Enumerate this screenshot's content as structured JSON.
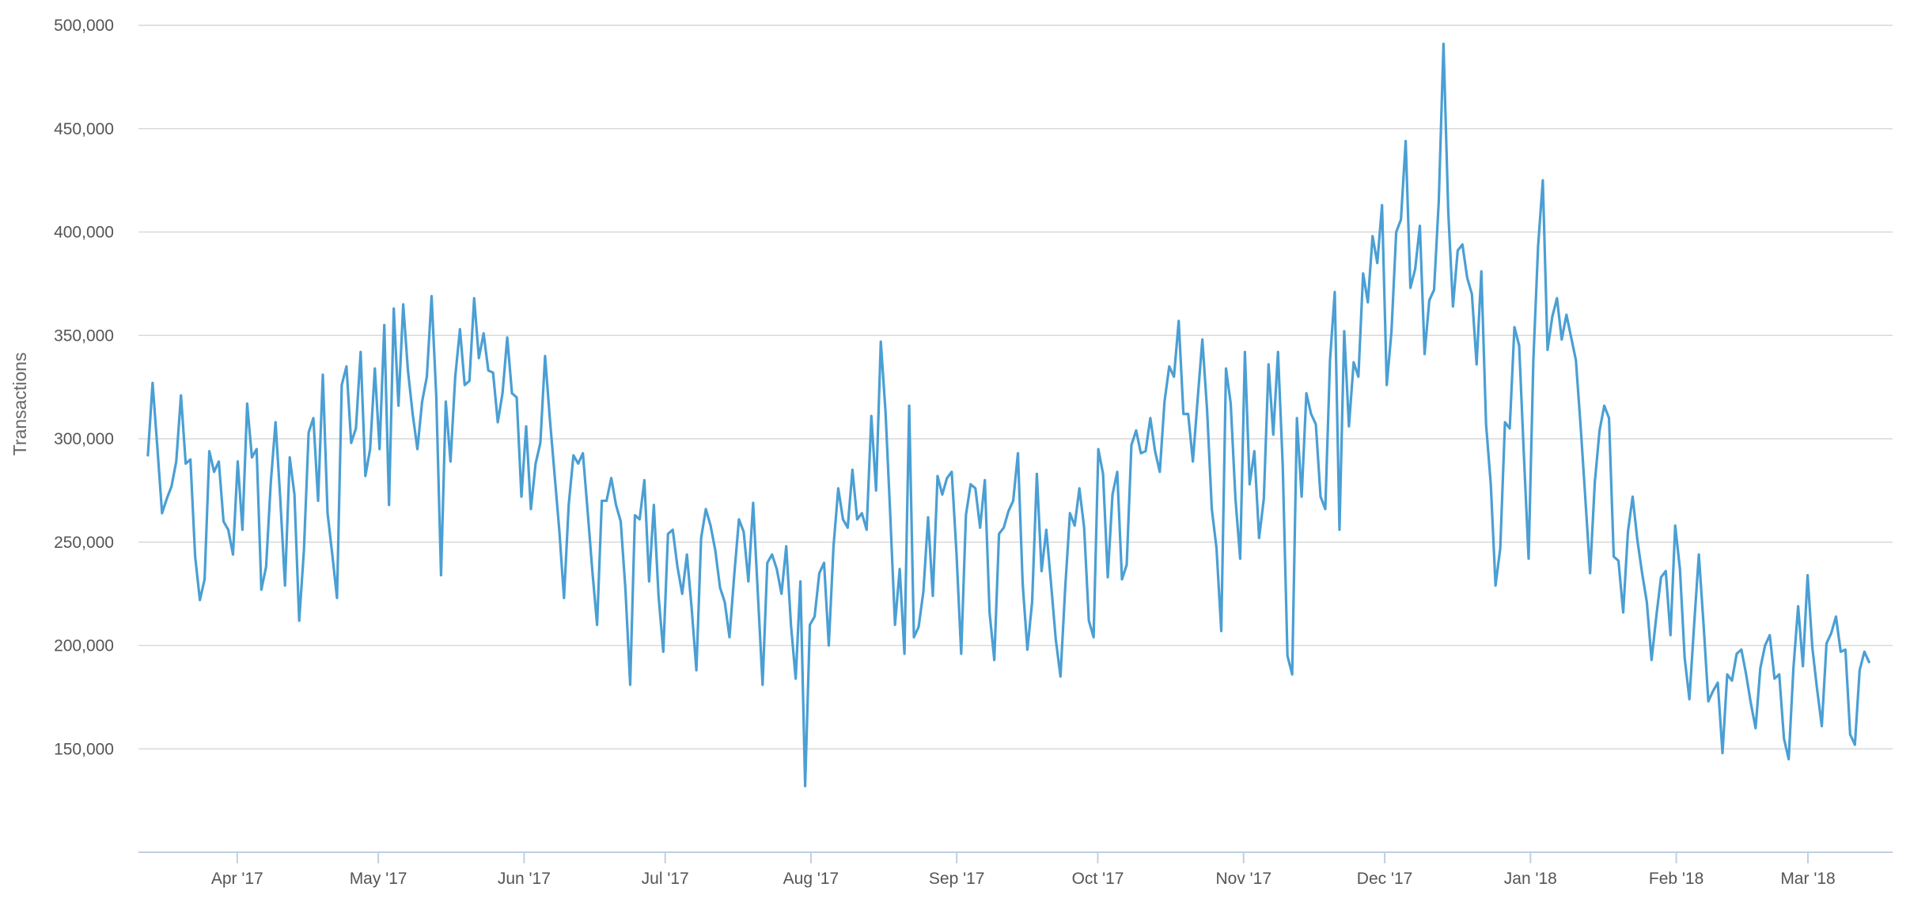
{
  "chart_data": {
    "type": "line",
    "title": "",
    "xlabel": "",
    "ylabel": "Transactions",
    "x_ticks": [
      "Apr '17",
      "May '17",
      "Jun '17",
      "Jul '17",
      "Aug '17",
      "Sep '17",
      "Oct '17",
      "Nov '17",
      "Dec '17",
      "Jan '18",
      "Feb '18",
      "Mar '18"
    ],
    "x_range": [
      "2017-03-11",
      "2018-03-19"
    ],
    "y_ticks": [
      150000,
      200000,
      250000,
      300000,
      350000,
      400000,
      450000,
      500000
    ],
    "y_tick_labels": [
      "150,000",
      "200,000",
      "250,000",
      "300,000",
      "350,000",
      "400,000",
      "450,000",
      "500,000"
    ],
    "ylim": [
      100000,
      500000
    ],
    "grid": true,
    "line_color": "#4a9fd4",
    "series": [
      {
        "start_date": "2017-03-13",
        "end_date": "2018-03-14",
        "values": [
          292000,
          327000,
          296000,
          264000,
          271000,
          277000,
          289000,
          321000,
          288000,
          290000,
          243000,
          222000,
          232000,
          294000,
          284000,
          289000,
          260000,
          256000,
          244000,
          289000,
          256000,
          317000,
          291000,
          295000,
          227000,
          238000,
          279000,
          308000,
          271000,
          229000,
          291000,
          273000,
          212000,
          246000,
          303000,
          310000,
          270000,
          331000,
          264000,
          244000,
          223000,
          326000,
          335000,
          298000,
          305000,
          342000,
          282000,
          295000,
          334000,
          295000,
          355000,
          268000,
          363000,
          316000,
          365000,
          333000,
          312000,
          295000,
          318000,
          330000,
          369000,
          320000,
          234000,
          318000,
          289000,
          330000,
          353000,
          326000,
          328000,
          368000,
          339000,
          351000,
          333000,
          332000,
          308000,
          322000,
          349000,
          322000,
          320000,
          272000,
          306000,
          266000,
          288000,
          298000,
          340000,
          310000,
          283000,
          256000,
          223000,
          268000,
          292000,
          288000,
          293000,
          265000,
          236000,
          210000,
          270000,
          270000,
          281000,
          268000,
          260000,
          227000,
          181000,
          263000,
          261000,
          280000,
          231000,
          268000,
          224000,
          197000,
          254000,
          256000,
          238000,
          225000,
          244000,
          218000,
          188000,
          252000,
          266000,
          258000,
          246000,
          228000,
          221000,
          204000,
          234000,
          261000,
          255000,
          231000,
          269000,
          225000,
          181000,
          240000,
          244000,
          237000,
          225000,
          248000,
          210000,
          184000,
          231000,
          132000,
          210000,
          214000,
          235000,
          240000,
          200000,
          248000,
          276000,
          261000,
          257000,
          285000,
          261000,
          264000,
          256000,
          311000,
          275000,
          347000,
          313000,
          263000,
          210000,
          237000,
          196000,
          316000,
          204000,
          209000,
          226000,
          262000,
          224000,
          282000,
          273000,
          281000,
          284000,
          245000,
          196000,
          263000,
          278000,
          276000,
          257000,
          280000,
          216000,
          193000,
          254000,
          257000,
          265000,
          270000,
          293000,
          230000,
          198000,
          221000,
          283000,
          236000,
          256000,
          230000,
          203000,
          185000,
          228000,
          264000,
          258000,
          276000,
          257000,
          212000,
          204000,
          295000,
          283000,
          233000,
          273000,
          284000,
          232000,
          239000,
          297000,
          304000,
          293000,
          294000,
          310000,
          294000,
          284000,
          318000,
          335000,
          330000,
          357000,
          312000,
          312000,
          289000,
          319000,
          348000,
          314000,
          266000,
          247000,
          207000,
          334000,
          317000,
          271000,
          242000,
          342000,
          278000,
          294000,
          252000,
          271000,
          336000,
          302000,
          342000,
          287000,
          195000,
          186000,
          310000,
          272000,
          322000,
          312000,
          307000,
          272000,
          266000,
          338000,
          371000,
          256000,
          352000,
          306000,
          337000,
          330000,
          380000,
          366000,
          398000,
          385000,
          413000,
          326000,
          352000,
          400000,
          406000,
          444000,
          373000,
          382000,
          403000,
          341000,
          367000,
          372000,
          415000,
          491000,
          410000,
          364000,
          391000,
          394000,
          378000,
          370000,
          336000,
          381000,
          307000,
          278000,
          229000,
          247000,
          308000,
          305000,
          354000,
          345000,
          292000,
          242000,
          338000,
          393000,
          425000,
          343000,
          359000,
          368000,
          348000,
          360000,
          349000,
          338000,
          306000,
          271000,
          235000,
          279000,
          304000,
          316000,
          310000,
          243000,
          241000,
          216000,
          255000,
          272000,
          251000,
          235000,
          221000,
          193000,
          214000,
          233000,
          236000,
          205000,
          258000,
          237000,
          194000,
          174000,
          210000,
          244000,
          210000,
          173000,
          178000,
          182000,
          148000,
          186000,
          183000,
          196000,
          198000,
          186000,
          172000,
          160000,
          189000,
          200000,
          205000,
          184000,
          186000,
          155000,
          145000,
          189000,
          219000,
          190000,
          234000,
          199000,
          179000,
          161000,
          201000,
          206000,
          214000,
          197000,
          198000,
          157000,
          152000,
          188000,
          197000,
          192000
        ]
      }
    ]
  }
}
